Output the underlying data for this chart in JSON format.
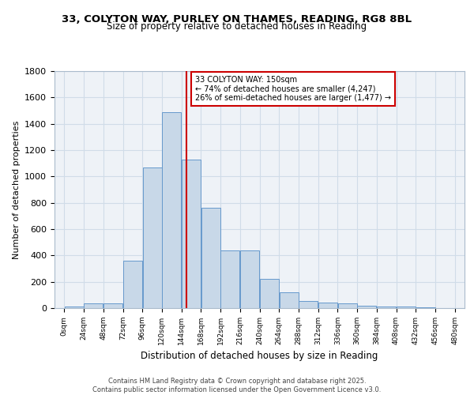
{
  "title1": "33, COLYTON WAY, PURLEY ON THAMES, READING, RG8 8BL",
  "title2": "Size of property relative to detached houses in Reading",
  "xlabel": "Distribution of detached houses by size in Reading",
  "ylabel": "Number of detached properties",
  "bar_color": "#c8d8e8",
  "bar_edge_color": "#6699cc",
  "bin_starts": [
    0,
    24,
    48,
    72,
    96,
    120,
    144,
    168,
    192,
    216,
    240,
    264,
    288,
    312,
    336,
    360,
    384,
    408,
    432,
    456
  ],
  "values": [
    10,
    35,
    35,
    360,
    1070,
    1490,
    1130,
    760,
    440,
    440,
    225,
    120,
    55,
    45,
    35,
    20,
    15,
    10,
    5,
    2
  ],
  "property_size": 150,
  "vline_color": "#cc0000",
  "annotation_text": "33 COLYTON WAY: 150sqm\n← 74% of detached houses are smaller (4,247)\n26% of semi-detached houses are larger (1,477) →",
  "annotation_box_color": "#ffffff",
  "annotation_box_edge": "#cc0000",
  "ylim": [
    0,
    1800
  ],
  "yticks": [
    0,
    200,
    400,
    600,
    800,
    1000,
    1200,
    1400,
    1600,
    1800
  ],
  "xtick_positions": [
    0,
    24,
    48,
    72,
    96,
    120,
    144,
    168,
    192,
    216,
    240,
    264,
    288,
    312,
    336,
    360,
    384,
    408,
    432,
    456,
    480
  ],
  "tick_labels": [
    "0sqm",
    "24sqm",
    "48sqm",
    "72sqm",
    "96sqm",
    "120sqm",
    "144sqm",
    "168sqm",
    "192sqm",
    "216sqm",
    "240sqm",
    "264sqm",
    "288sqm",
    "312sqm",
    "336sqm",
    "360sqm",
    "384sqm",
    "408sqm",
    "432sqm",
    "456sqm",
    "480sqm"
  ],
  "grid_color": "#d0dce8",
  "background_color": "#eef2f7",
  "footer": "Contains HM Land Registry data © Crown copyright and database right 2025.\nContains public sector information licensed under the Open Government Licence v3.0."
}
